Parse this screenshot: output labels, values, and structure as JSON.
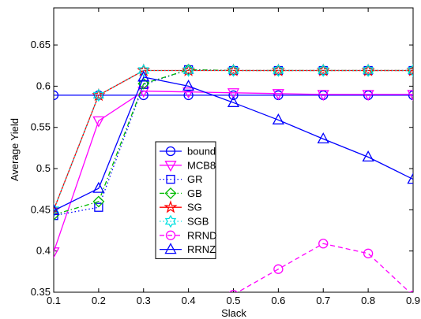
{
  "chart_data": {
    "type": "line",
    "title": "",
    "xlabel": "Slack",
    "ylabel": "Average Yield",
    "xlim": [
      0.1,
      0.9
    ],
    "ylim": [
      0.35,
      0.695
    ],
    "x": [
      0.1,
      0.2,
      0.3,
      0.4,
      0.5,
      0.6,
      0.7,
      0.8,
      0.9
    ],
    "x_ticks": [
      0.1,
      0.2,
      0.3,
      0.4,
      0.5,
      0.6,
      0.7,
      0.8,
      0.9
    ],
    "x_tick_labels": [
      "0.1",
      "0.2",
      "0.3",
      "0.4",
      "0.5",
      "0.6",
      "0.7",
      "0.8",
      "0.9"
    ],
    "y_ticks": [
      0.35,
      0.4,
      0.45,
      0.5,
      0.55,
      0.6,
      0.65
    ],
    "y_tick_labels": [
      "0.35",
      "0.4",
      "0.45",
      "0.5",
      "0.55",
      "0.6",
      "0.65"
    ],
    "grid": false,
    "legend_position": "center",
    "series": [
      {
        "name": "bound",
        "color": "#0000ff",
        "marker": "circle",
        "dash": "solid",
        "values": [
          0.589,
          0.589,
          0.589,
          0.589,
          0.589,
          0.589,
          0.589,
          0.589,
          0.589
        ]
      },
      {
        "name": "MCB8",
        "color": "#ff00ff",
        "marker": "triangle-down",
        "dash": "solid",
        "values": [
          0.399,
          0.558,
          0.594,
          0.593,
          0.592,
          0.591,
          0.59,
          0.59,
          0.59
        ]
      },
      {
        "name": "GR",
        "color": "#0000ff",
        "marker": "square",
        "dash": "dotted",
        "values": [
          0.443,
          0.453,
          0.602,
          0.62,
          0.619,
          0.619,
          0.619,
          0.619,
          0.619
        ]
      },
      {
        "name": "GB",
        "color": "#00bb00",
        "marker": "diamond",
        "dash": "dashdot",
        "values": [
          0.444,
          0.46,
          0.603,
          0.62,
          0.619,
          0.619,
          0.619,
          0.619,
          0.619
        ]
      },
      {
        "name": "SG",
        "color": "#ff0000",
        "marker": "star",
        "dash": "solid",
        "values": [
          0.45,
          0.589,
          0.619,
          0.619,
          0.619,
          0.619,
          0.619,
          0.619,
          0.619
        ]
      },
      {
        "name": "SGB",
        "color": "#00e0e0",
        "marker": "hexagram",
        "dash": "dotted",
        "values": [
          0.45,
          0.589,
          0.619,
          0.619,
          0.619,
          0.619,
          0.619,
          0.619,
          0.619
        ]
      },
      {
        "name": "RRND",
        "color": "#ff00ff",
        "marker": "circle",
        "dash": "dashed",
        "values": [
          null,
          null,
          null,
          null,
          0.347,
          0.378,
          0.409,
          0.397,
          0.346
        ]
      },
      {
        "name": "RRNZ",
        "color": "#0000ff",
        "marker": "triangle-up",
        "dash": "solid",
        "values": [
          0.449,
          0.476,
          0.611,
          0.6,
          0.58,
          0.559,
          0.536,
          0.514,
          0.487
        ]
      }
    ]
  }
}
